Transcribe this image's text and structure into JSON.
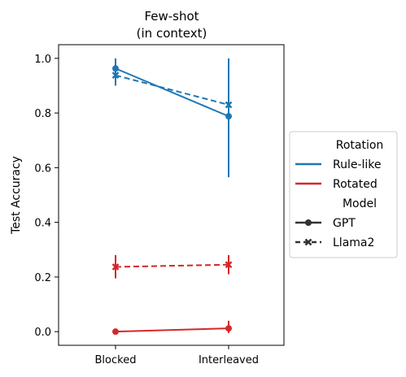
{
  "chart_data": {
    "type": "line",
    "title_lines": [
      "Few-shot",
      "(in context)"
    ],
    "xlabel": "",
    "ylabel": "Test Accuracy",
    "categories": [
      "Blocked",
      "Interleaved"
    ],
    "ylim": [
      -0.05,
      1.05
    ],
    "yticks": [
      0.0,
      0.2,
      0.4,
      0.6,
      0.8,
      1.0
    ],
    "ytick_labels": [
      "0.0",
      "0.2",
      "0.4",
      "0.6",
      "0.8",
      "1.0"
    ],
    "grid": false,
    "legend_position": "outside-right",
    "series": [
      {
        "rotation": "Rule-like",
        "model": "GPT",
        "color": "#1f77b4",
        "dash": "solid",
        "marker": "circle",
        "values": [
          0.963,
          0.788
        ],
        "error_low": [
          0.925,
          0.565
        ],
        "error_high": [
          1.0,
          1.0
        ]
      },
      {
        "rotation": "Rule-like",
        "model": "Llama2",
        "color": "#1f77b4",
        "dash": "dashed",
        "marker": "x",
        "values": [
          0.938,
          0.83
        ],
        "error_low": [
          0.9,
          0.81
        ],
        "error_high": [
          0.975,
          0.85
        ]
      },
      {
        "rotation": "Rotated",
        "model": "GPT",
        "color": "#d62728",
        "dash": "solid",
        "marker": "circle",
        "values": [
          0.0,
          0.012
        ],
        "error_low": [
          0.0,
          -0.005
        ],
        "error_high": [
          0.0,
          0.04
        ]
      },
      {
        "rotation": "Rotated",
        "model": "Llama2",
        "color": "#d62728",
        "dash": "dashed",
        "marker": "x",
        "values": [
          0.237,
          0.245
        ],
        "error_low": [
          0.195,
          0.21
        ],
        "error_high": [
          0.28,
          0.28
        ]
      }
    ],
    "legend": {
      "sections": [
        {
          "title": "Rotation",
          "entries": [
            {
              "label": "Rule-like",
              "color": "#1f77b4",
              "dash": "solid",
              "marker": "none"
            },
            {
              "label": "Rotated",
              "color": "#d62728",
              "dash": "solid",
              "marker": "none"
            }
          ]
        },
        {
          "title": "Model",
          "entries": [
            {
              "label": "GPT",
              "color": "#333333",
              "dash": "solid",
              "marker": "circle"
            },
            {
              "label": "Llama2",
              "color": "#333333",
              "dash": "dashed",
              "marker": "x"
            }
          ]
        }
      ]
    }
  }
}
